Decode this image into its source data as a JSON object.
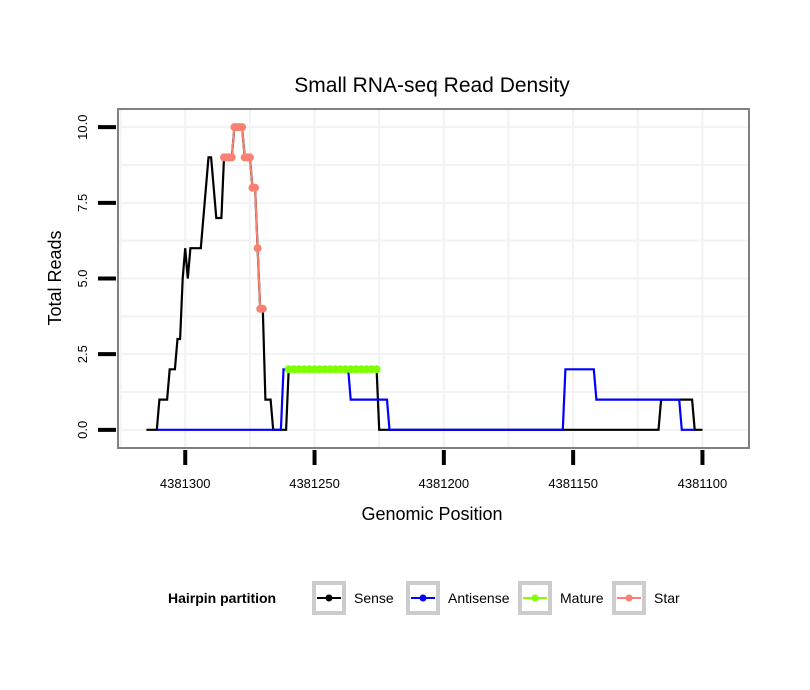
{
  "chart_data": {
    "type": "line",
    "title": "Small RNA-seq Read Density",
    "xlabel": "Genomic Position",
    "ylabel": "Total Reads",
    "x_reversed": true,
    "xlim": [
      4381326,
      4381082
    ],
    "ylim": [
      -0.6,
      10.6
    ],
    "x_ticks": [
      4381300,
      4381250,
      4381200,
      4381150,
      4381100
    ],
    "x_tick_labels": [
      "4381300",
      "4381250",
      "4381200",
      "4381150",
      "4381100"
    ],
    "y_ticks": [
      0,
      2.5,
      5,
      7.5,
      10
    ],
    "y_tick_labels": [
      "0.0",
      "2.5",
      "5.0",
      "7.5",
      "10.0"
    ],
    "grid": true,
    "legend": {
      "title": "Hairpin partition",
      "position": "bottom",
      "entries": [
        {
          "label": "Sense",
          "color": "#000000"
        },
        {
          "label": "Antisense",
          "color": "#0000ff"
        },
        {
          "label": "Mature",
          "color": "#7fff00"
        },
        {
          "label": "Star",
          "color": "#fa8072"
        }
      ]
    },
    "series": [
      {
        "name": "Sense",
        "color": "#000000",
        "points": [
          [
            4381315,
            0
          ],
          [
            4381311,
            0
          ],
          [
            4381310,
            1
          ],
          [
            4381307,
            1
          ],
          [
            4381306,
            2
          ],
          [
            4381304,
            2
          ],
          [
            4381303,
            3
          ],
          [
            4381302,
            3
          ],
          [
            4381301,
            5
          ],
          [
            4381300,
            6
          ],
          [
            4381299,
            5
          ],
          [
            4381298,
            6
          ],
          [
            4381294,
            6
          ],
          [
            4381291,
            9
          ],
          [
            4381290,
            9
          ],
          [
            4381288,
            7
          ],
          [
            4381286,
            7
          ],
          [
            4381285,
            9
          ],
          [
            4381282,
            9
          ],
          [
            4381281,
            10
          ],
          [
            4381278,
            10
          ],
          [
            4381277,
            9
          ],
          [
            4381275,
            9
          ],
          [
            4381274,
            8
          ],
          [
            4381273,
            8
          ],
          [
            4381272,
            6
          ],
          [
            4381271,
            4
          ],
          [
            4381270,
            4
          ],
          [
            4381269,
            1
          ],
          [
            4381267,
            1
          ],
          [
            4381266,
            0
          ],
          [
            4381261,
            0
          ],
          [
            4381260,
            2
          ],
          [
            4381226,
            2
          ],
          [
            4381225,
            0
          ],
          [
            4381117,
            0
          ],
          [
            4381116,
            1
          ],
          [
            4381104,
            1
          ],
          [
            4381103,
            0
          ],
          [
            4381100,
            0
          ]
        ]
      },
      {
        "name": "Antisense",
        "color": "#0000ff",
        "points": [
          [
            4381311,
            0
          ],
          [
            4381263,
            0
          ],
          [
            4381262,
            2
          ],
          [
            4381237,
            2
          ],
          [
            4381236,
            1
          ],
          [
            4381222,
            1
          ],
          [
            4381221,
            0
          ],
          [
            4381154,
            0
          ],
          [
            4381153,
            2
          ],
          [
            4381142,
            2
          ],
          [
            4381141,
            1
          ],
          [
            4381117,
            1
          ],
          [
            4381116,
            1
          ],
          [
            4381109,
            1
          ],
          [
            4381108,
            0
          ],
          [
            4381103,
            0
          ]
        ]
      },
      {
        "name": "Mature",
        "color": "#7fff00",
        "points": [
          [
            4381260,
            2
          ],
          [
            4381258,
            2
          ],
          [
            4381256,
            2
          ],
          [
            4381254,
            2
          ],
          [
            4381252,
            2
          ],
          [
            4381250,
            2
          ],
          [
            4381248,
            2
          ],
          [
            4381246,
            2
          ],
          [
            4381244,
            2
          ],
          [
            4381242,
            2
          ],
          [
            4381240,
            2
          ],
          [
            4381238,
            2
          ],
          [
            4381236,
            2
          ],
          [
            4381234,
            2
          ],
          [
            4381232,
            2
          ],
          [
            4381230,
            2
          ],
          [
            4381228,
            2
          ],
          [
            4381226,
            2
          ]
        ]
      },
      {
        "name": "Star",
        "color": "#fa8072",
        "points": [
          [
            4381285,
            9
          ],
          [
            4381284,
            9
          ],
          [
            4381283,
            9
          ],
          [
            4381282,
            9
          ],
          [
            4381281,
            10
          ],
          [
            4381280,
            10
          ],
          [
            4381279,
            10
          ],
          [
            4381278,
            10
          ],
          [
            4381277,
            9
          ],
          [
            4381276,
            9
          ],
          [
            4381275,
            9
          ],
          [
            4381274,
            8
          ],
          [
            4381273,
            8
          ],
          [
            4381272,
            6
          ],
          [
            4381271,
            4
          ],
          [
            4381270,
            4
          ]
        ]
      }
    ]
  }
}
